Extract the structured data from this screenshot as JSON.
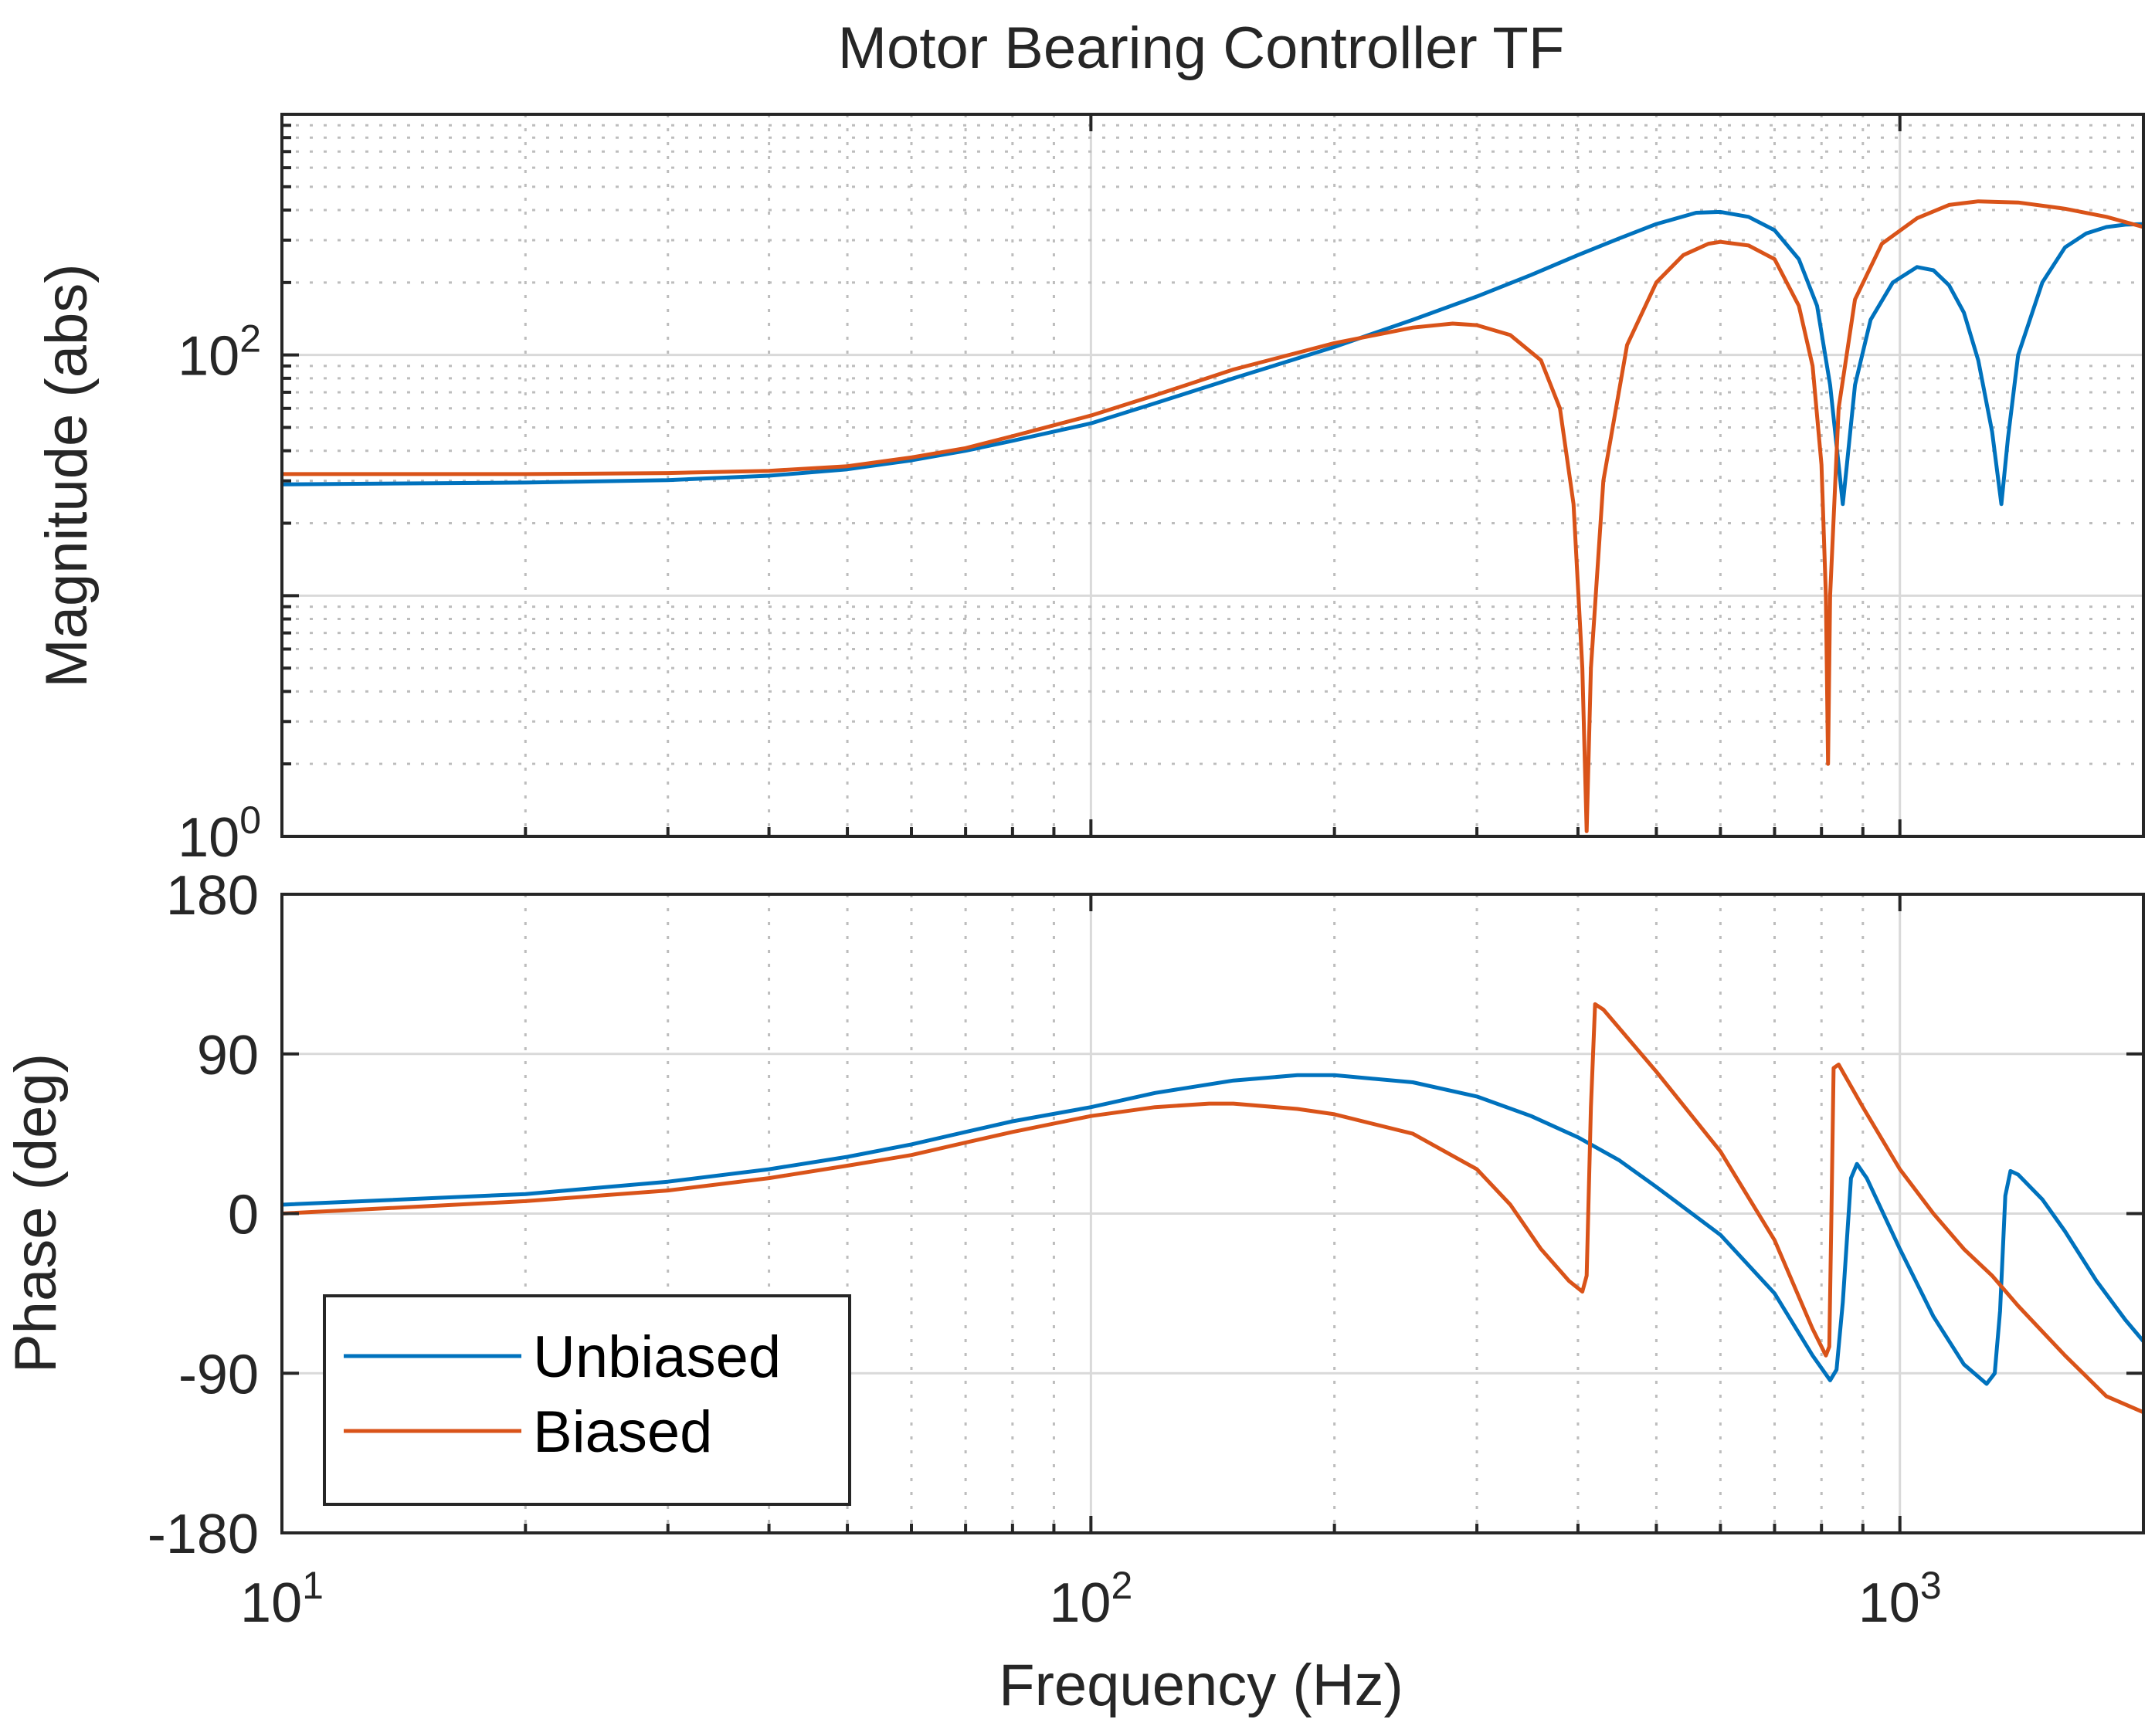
{
  "chart_data": {
    "type": "line",
    "title": "Motor Bearing Controller TF",
    "xlabel": "Frequency  (Hz)",
    "x_scale": "log",
    "xlim": [
      10,
      2000
    ],
    "x_ticks": [
      {
        "value": 10,
        "base": "10",
        "exp": "1"
      },
      {
        "value": 100,
        "base": "10",
        "exp": "2"
      },
      {
        "value": 1000,
        "base": "10",
        "exp": "3"
      }
    ],
    "colors": {
      "Unbiased": "#0072BD",
      "Biased": "#D95319"
    },
    "legend": {
      "location": "lower-left",
      "entries": [
        "Unbiased",
        "Biased"
      ]
    },
    "subplots": [
      {
        "name": "magnitude",
        "ylabel": "Magnitude (abs)",
        "y_scale": "log",
        "ylim": [
          1,
          1000
        ],
        "y_ticks": [
          {
            "value": 1,
            "base": "10",
            "exp": "0"
          },
          {
            "value": 100,
            "base": "10",
            "exp": "2"
          }
        ],
        "series": [
          {
            "name": "Unbiased",
            "points": [
              [
                10,
                29
              ],
              [
                20,
                29.5
              ],
              [
                30,
                30.2
              ],
              [
                40,
                31.5
              ],
              [
                50,
                33.5
              ],
              [
                60,
                36.5
              ],
              [
                70,
                40
              ],
              [
                80,
                44
              ],
              [
                100,
                52
              ],
              [
                120,
                63
              ],
              [
                150,
                80
              ],
              [
                200,
                108
              ],
              [
                250,
                140
              ],
              [
                300,
                175
              ],
              [
                350,
                215
              ],
              [
                400,
                260
              ],
              [
                450,
                305
              ],
              [
                500,
                350
              ],
              [
                560,
                390
              ],
              [
                600,
                393
              ],
              [
                650,
                375
              ],
              [
                700,
                330
              ],
              [
                750,
                250
              ],
              [
                790,
                160
              ],
              [
                820,
                75
              ],
              [
                840,
                35
              ],
              [
                850,
                24
              ],
              [
                860,
                35
              ],
              [
                880,
                75
              ],
              [
                920,
                140
              ],
              [
                980,
                200
              ],
              [
                1050,
                232
              ],
              [
                1100,
                225
              ],
              [
                1150,
                195
              ],
              [
                1200,
                150
              ],
              [
                1250,
                95
              ],
              [
                1300,
                48
              ],
              [
                1335,
                24
              ],
              [
                1360,
                45
              ],
              [
                1400,
                100
              ],
              [
                1500,
                200
              ],
              [
                1600,
                280
              ],
              [
                1700,
                320
              ],
              [
                1800,
                340
              ],
              [
                1900,
                348
              ],
              [
                2000,
                350
              ]
            ]
          },
          {
            "name": "Biased",
            "points": [
              [
                10,
                32
              ],
              [
                20,
                32
              ],
              [
                30,
                32.3
              ],
              [
                40,
                33
              ],
              [
                50,
                34.5
              ],
              [
                60,
                37.5
              ],
              [
                70,
                41
              ],
              [
                80,
                46
              ],
              [
                100,
                56
              ],
              [
                120,
                68
              ],
              [
                150,
                87
              ],
              [
                200,
                112
              ],
              [
                250,
                130
              ],
              [
                280,
                135
              ],
              [
                300,
                133
              ],
              [
                330,
                121
              ],
              [
                360,
                95
              ],
              [
                380,
                60
              ],
              [
                395,
                24
              ],
              [
                405,
                5
              ],
              [
                410,
                1.05
              ],
              [
                415,
                5
              ],
              [
                430,
                30
              ],
              [
                460,
                110
              ],
              [
                500,
                200
              ],
              [
                540,
                260
              ],
              [
                580,
                290
              ],
              [
                600,
                295
              ],
              [
                650,
                285
              ],
              [
                700,
                250
              ],
              [
                750,
                160
              ],
              [
                780,
                90
              ],
              [
                800,
                35
              ],
              [
                810,
                10
              ],
              [
                815,
                2
              ],
              [
                820,
                10
              ],
              [
                840,
                60
              ],
              [
                880,
                170
              ],
              [
                950,
                290
              ],
              [
                1050,
                370
              ],
              [
                1150,
                420
              ],
              [
                1250,
                435
              ],
              [
                1400,
                430
              ],
              [
                1600,
                405
              ],
              [
                1800,
                375
              ],
              [
                2000,
                340
              ]
            ]
          }
        ]
      },
      {
        "name": "phase",
        "ylabel": "Phase (deg)",
        "y_scale": "linear",
        "ylim": [
          -180,
          180
        ],
        "y_ticks": [
          {
            "value": 180,
            "label": "180"
          },
          {
            "value": 90,
            "label": "90"
          },
          {
            "value": 0,
            "label": "0"
          },
          {
            "value": -90,
            "label": "-90"
          },
          {
            "value": -180,
            "label": "-180"
          }
        ],
        "series": [
          {
            "name": "Unbiased",
            "points": [
              [
                10,
                5
              ],
              [
                20,
                11
              ],
              [
                30,
                18
              ],
              [
                40,
                25
              ],
              [
                50,
                32
              ],
              [
                60,
                39
              ],
              [
                70,
                46
              ],
              [
                80,
                52
              ],
              [
                100,
                60
              ],
              [
                120,
                68
              ],
              [
                150,
                75
              ],
              [
                180,
                78
              ],
              [
                200,
                78
              ],
              [
                250,
                74
              ],
              [
                300,
                66
              ],
              [
                350,
                55
              ],
              [
                400,
                43
              ],
              [
                450,
                30
              ],
              [
                500,
                15
              ],
              [
                600,
                -12
              ],
              [
                700,
                -45
              ],
              [
                780,
                -80
              ],
              [
                820,
                -94
              ],
              [
                835,
                -88
              ],
              [
                850,
                -50
              ],
              [
                870,
                20
              ],
              [
                885,
                28
              ],
              [
                910,
                20
              ],
              [
                1000,
                -20
              ],
              [
                1100,
                -58
              ],
              [
                1200,
                -85
              ],
              [
                1280,
                -96
              ],
              [
                1310,
                -90
              ],
              [
                1330,
                -55
              ],
              [
                1350,
                10
              ],
              [
                1370,
                24
              ],
              [
                1400,
                22
              ],
              [
                1500,
                8
              ],
              [
                1600,
                -10
              ],
              [
                1750,
                -38
              ],
              [
                1900,
                -60
              ],
              [
                2000,
                -72
              ]
            ]
          },
          {
            "name": "Biased",
            "points": [
              [
                10,
                0
              ],
              [
                20,
                7
              ],
              [
                30,
                13
              ],
              [
                40,
                20
              ],
              [
                50,
                27
              ],
              [
                60,
                33
              ],
              [
                70,
                40
              ],
              [
                80,
                46
              ],
              [
                100,
                55
              ],
              [
                120,
                60
              ],
              [
                140,
                62
              ],
              [
                150,
                62
              ],
              [
                180,
                59
              ],
              [
                200,
                56
              ],
              [
                250,
                45
              ],
              [
                300,
                25
              ],
              [
                330,
                5
              ],
              [
                360,
                -20
              ],
              [
                390,
                -38
              ],
              [
                405,
                -44
              ],
              [
                410,
                -35
              ],
              [
                415,
                60
              ],
              [
                420,
                118
              ],
              [
                430,
                115
              ],
              [
                500,
                80
              ],
              [
                600,
                35
              ],
              [
                700,
                -15
              ],
              [
                780,
                -65
              ],
              [
                810,
                -80
              ],
              [
                818,
                -75
              ],
              [
                823,
                0
              ],
              [
                828,
                82
              ],
              [
                840,
                84
              ],
              [
                900,
                60
              ],
              [
                1000,
                25
              ],
              [
                1100,
                0
              ],
              [
                1200,
                -20
              ],
              [
                1300,
                -35
              ],
              [
                1400,
                -52
              ],
              [
                1600,
                -80
              ],
              [
                1800,
                -103
              ],
              [
                2000,
                -112
              ]
            ]
          }
        ]
      }
    ]
  }
}
